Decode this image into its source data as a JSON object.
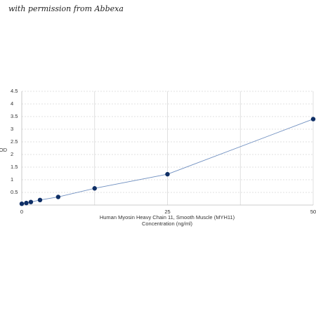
{
  "watermark": "with permission from Abbexa",
  "chart_data": {
    "type": "scatter",
    "title": "",
    "xlabel_line1": "Human Myosin Heavy Chain 11, Smooth Muscle (MYH11)",
    "xlabel_line2": "Concentration (ng/ml)",
    "ylabel": "OD",
    "xlim": [
      0,
      50
    ],
    "ylim": [
      0,
      4.5
    ],
    "x_ticks": [
      0,
      25,
      50
    ],
    "y_ticks": [
      0.5,
      1,
      1.5,
      2,
      2.5,
      3,
      3.5,
      4,
      4.5
    ],
    "grid": true,
    "line_color": "#6f8fc0",
    "marker_color": "#0f2f66",
    "grid_color": "#d8d8d8",
    "series": [
      {
        "x": [
          0,
          0.78,
          1.56,
          3.13,
          6.25,
          12.5,
          25,
          50
        ],
        "y": [
          0.05,
          0.08,
          0.12,
          0.2,
          0.32,
          0.66,
          1.22,
          3.4
        ]
      }
    ]
  }
}
